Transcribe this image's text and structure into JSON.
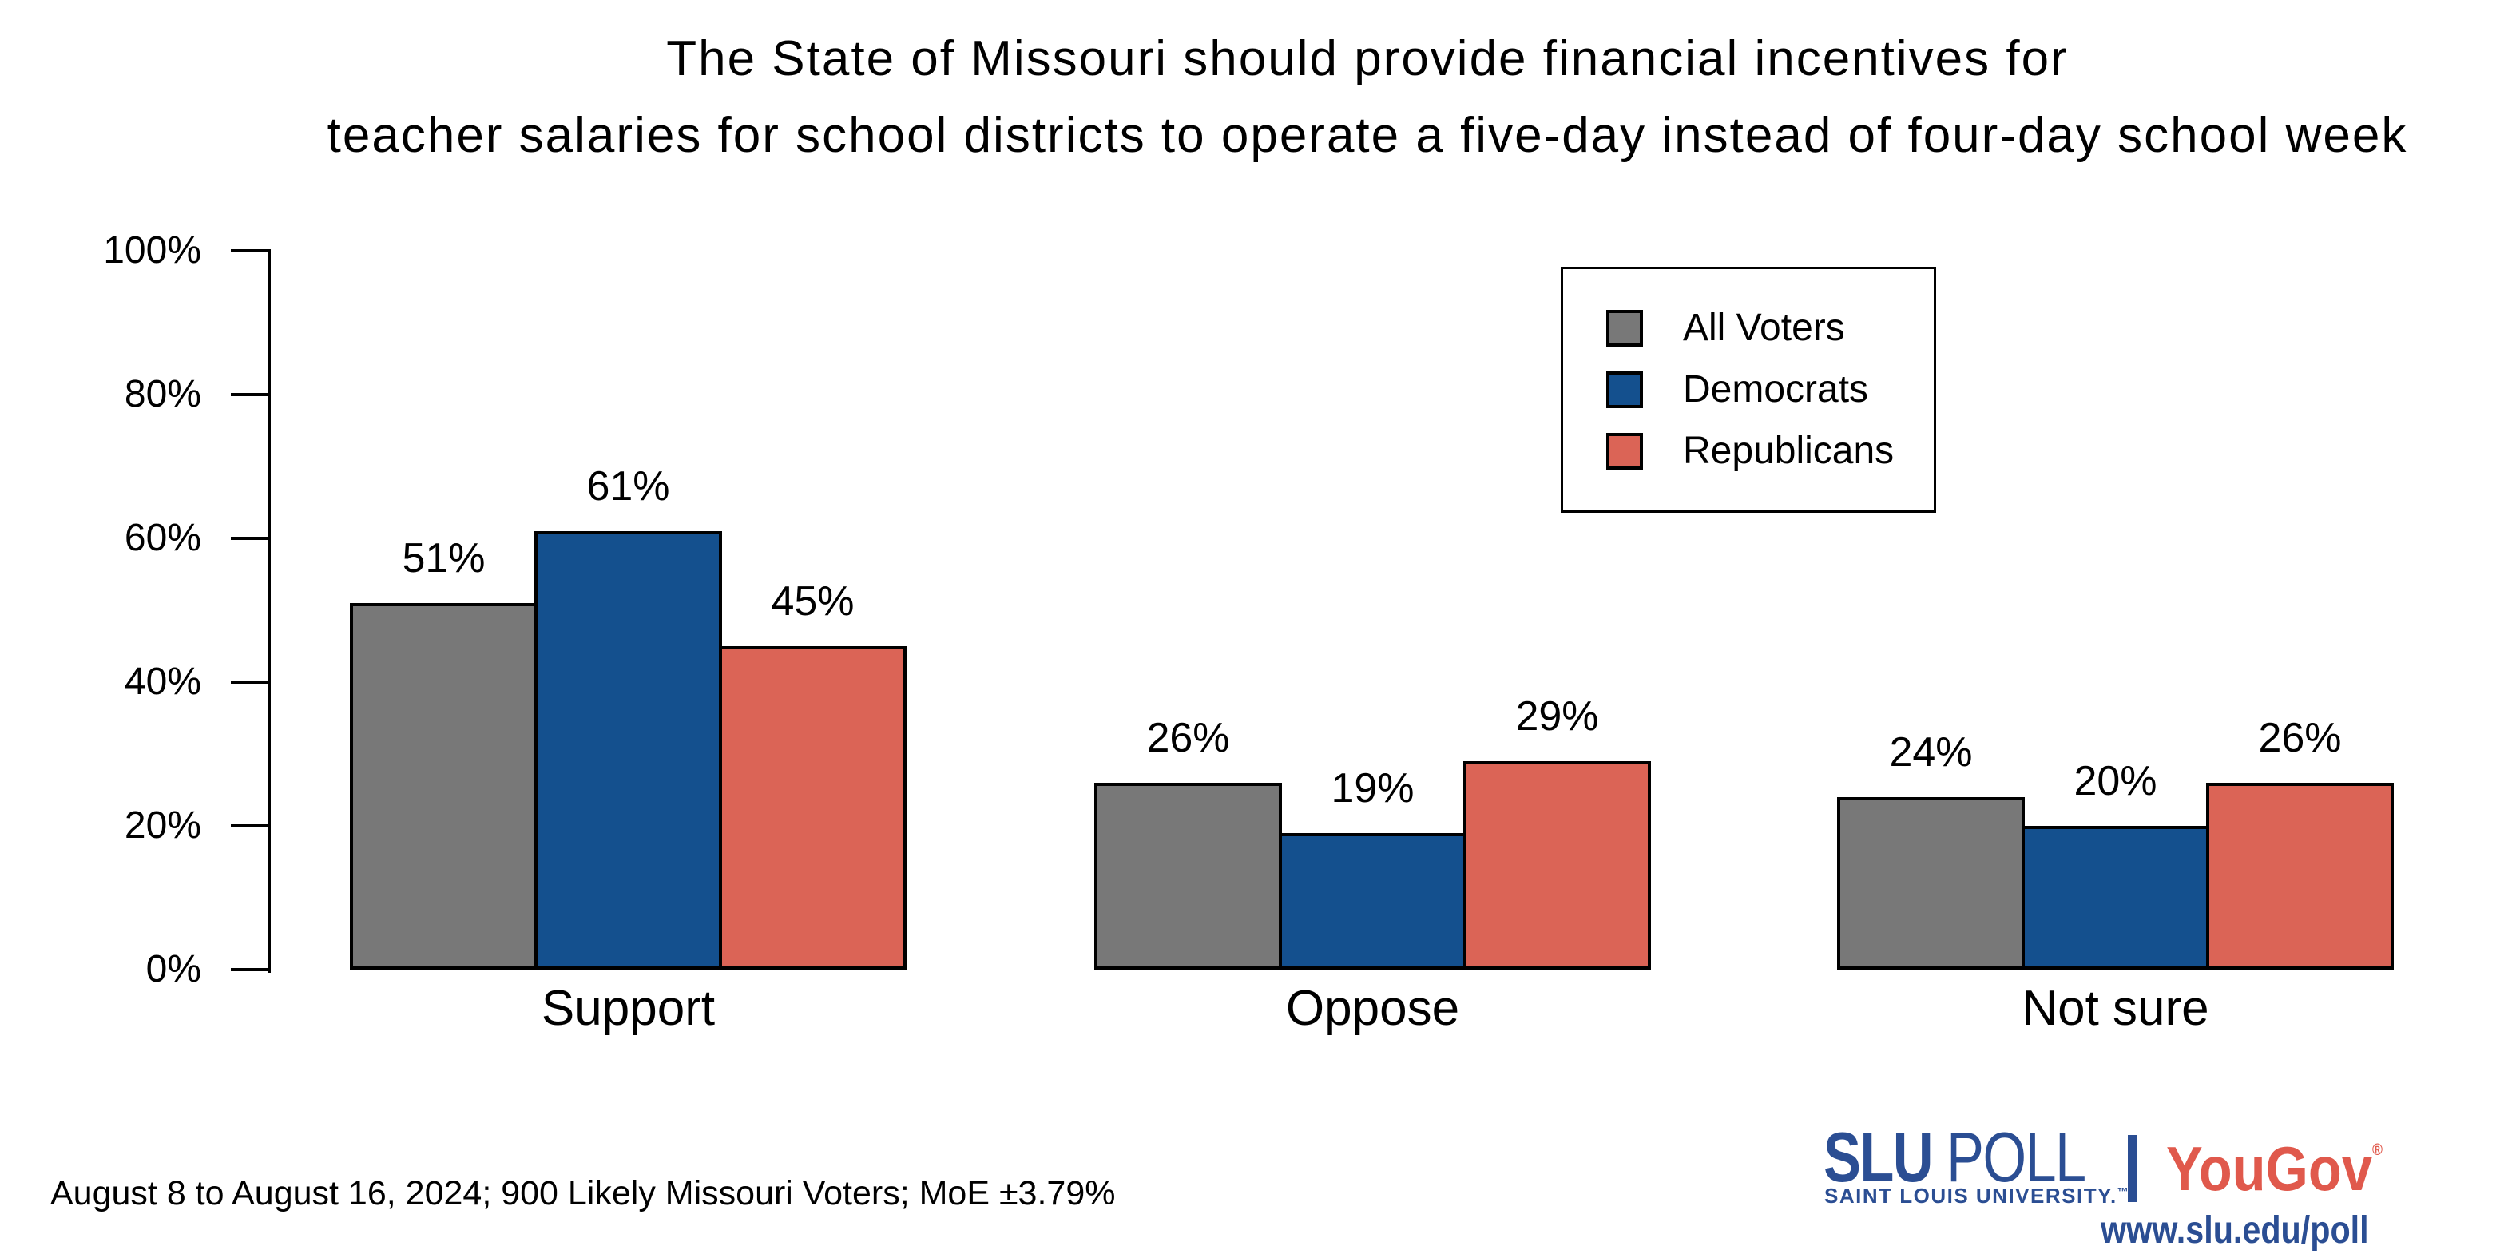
{
  "title": {
    "line1": "The State of Missouri should provide financial incentives for",
    "line2": "teacher salaries for school districts to operate a five-day instead of four-day school week"
  },
  "chart_data": {
    "type": "bar",
    "categories": [
      "Support",
      "Oppose",
      "Not sure"
    ],
    "series": [
      {
        "name": "All Voters",
        "color": "#787878",
        "values": [
          51,
          26,
          24
        ]
      },
      {
        "name": "Democrats",
        "color": "#14508E",
        "values": [
          61,
          19,
          20
        ]
      },
      {
        "name": "Republicans",
        "color": "#DB6456",
        "values": [
          45,
          29,
          26
        ]
      }
    ],
    "value_labels": [
      [
        "51%",
        "26%",
        "24%"
      ],
      [
        "61%",
        "19%",
        "20%"
      ],
      [
        "45%",
        "29%",
        "26%"
      ]
    ],
    "ylim": [
      0,
      100
    ],
    "yticks": [
      "0%",
      "20%",
      "40%",
      "60%",
      "80%",
      "100%"
    ],
    "grid": false,
    "legend_position": "top-right"
  },
  "caption": "August 8 to August 16, 2024; 900 Likely Missouri Voters; MoE ±3.79%",
  "branding": {
    "slu": "SLU",
    "poll": " POLL",
    "slu_subtitle": "SAINT LOUIS UNIVERSITY.",
    "trademark": "™",
    "yougov": "YouGov",
    "registered": "®",
    "url": "www.slu.edu/poll",
    "slu_blue": "#2B4E93",
    "yougov_red": "#E0594C"
  }
}
